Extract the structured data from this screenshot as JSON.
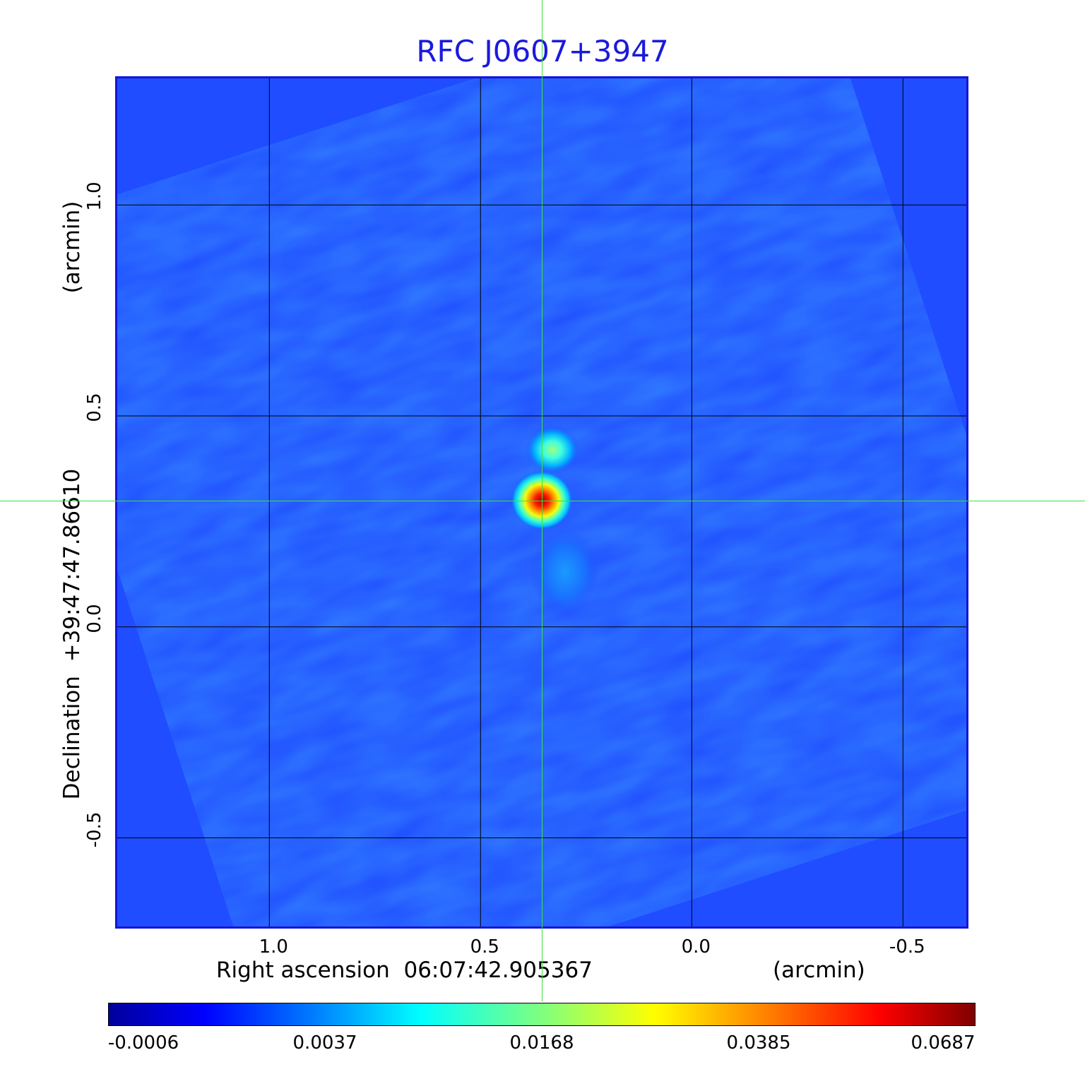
{
  "chart_data": {
    "type": "heatmap",
    "title": "RFC J0607+3947",
    "xlabel": "Right ascension  06:07:42.905367",
    "xunit": "(arcmin)",
    "ylabel": "Declination  +39:47:47.86610",
    "yunit": "(arcmin)",
    "x_ticks": [
      "1.0",
      "0.5",
      "0.0",
      "-0.5"
    ],
    "y_ticks": [
      "1.0",
      "0.5",
      "0.0",
      "-0.5"
    ],
    "xlim": [
      1.36,
      -0.65
    ],
    "ylim": [
      -0.71,
      1.3
    ],
    "grid": true,
    "colormap": "jet",
    "crosshair": {
      "x": 0.355,
      "y": 0.3
    },
    "sources": [
      {
        "x": 0.355,
        "y": 0.3,
        "peak": 0.0687
      },
      {
        "x": 0.33,
        "y": 0.42,
        "peak": 0.015
      },
      {
        "x": 0.3,
        "y": 0.13,
        "peak": 0.004
      }
    ],
    "colorbar": {
      "min": -0.0006,
      "max": 0.0687,
      "tick_labels": [
        "-0.0006",
        "0.0037",
        "0.0168",
        "0.0385",
        "0.0687"
      ]
    },
    "colors": {
      "title": "#1a1adc",
      "frame": "#1515d8",
      "background": "#1f4dff",
      "crosshair": "#3ee03e",
      "grid": "#000000"
    }
  }
}
